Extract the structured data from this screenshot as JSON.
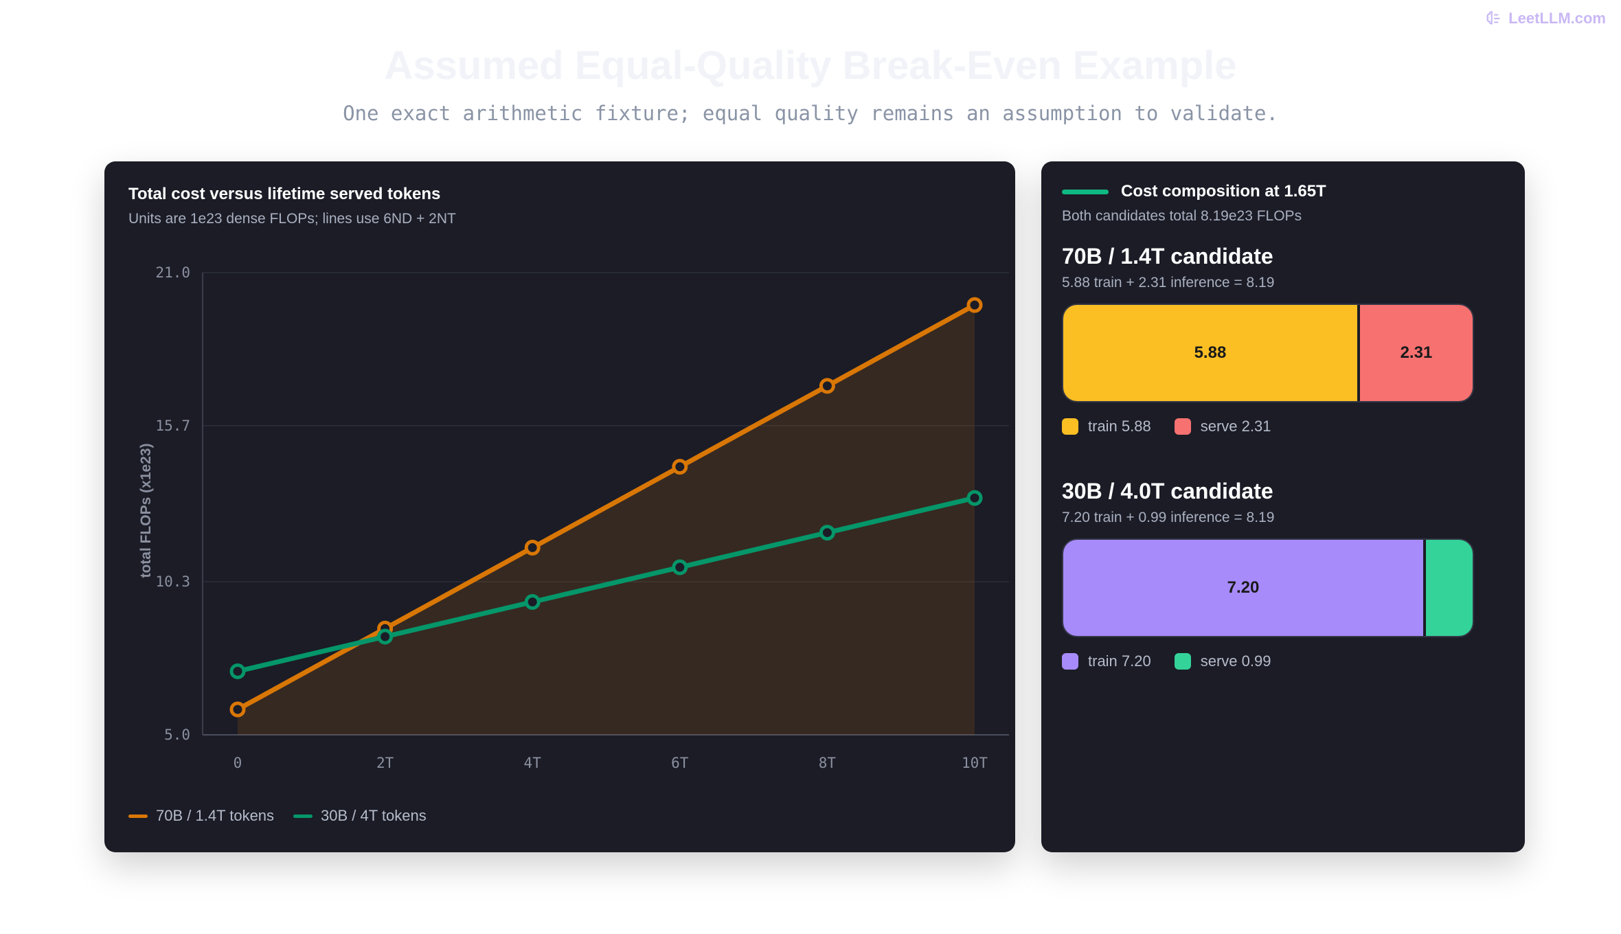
{
  "brand": {
    "name": "LeetLLM.com",
    "icon": "brain-icon"
  },
  "page": {
    "title": "Assumed Equal-Quality Break-Even Example",
    "subtitle": "One exact arithmetic fixture; equal quality remains an assumption to validate."
  },
  "left_panel": {
    "title": "Total cost versus lifetime served tokens",
    "subtitle": "Units are 1e23 dense FLOPs; lines use 6ND + 2NT"
  },
  "chart_data": {
    "type": "line",
    "title": "Total cost versus lifetime served tokens",
    "ylabel": "total FLOPs (x1e23)",
    "xlabel": "",
    "x": [
      0,
      2,
      4,
      6,
      8,
      10
    ],
    "x_tick_labels": [
      "0",
      "2T",
      "4T",
      "6T",
      "8T",
      "10T"
    ],
    "xlim": [
      0,
      10
    ],
    "ylim": [
      5.0,
      21.0
    ],
    "y_ticks": [
      5.0,
      10.3,
      15.7,
      21.0
    ],
    "y_tick_labels": [
      "5.0",
      "10.3",
      "15.7",
      "21.0"
    ],
    "grid": true,
    "series": [
      {
        "name": "70B / 1.4T tokens",
        "color": "#d97706",
        "fill_area": true,
        "values": [
          5.88,
          8.68,
          11.48,
          14.28,
          17.08,
          19.88
        ]
      },
      {
        "name": "30B / 4T tokens",
        "color": "#059669",
        "fill_area": false,
        "values": [
          7.2,
          8.4,
          9.6,
          10.8,
          12.0,
          13.2
        ]
      }
    ]
  },
  "right_panel": {
    "title": "Cost composition at 1.65T",
    "subtitle": "Both candidates total 8.19e23 FLOPs",
    "candidates": [
      {
        "title": "70B / 1.4T candidate",
        "equation": "5.88 train + 2.31 inference = 8.19",
        "segments": [
          {
            "label": "5.88",
            "value": 5.88,
            "color": "#fbbf24"
          },
          {
            "label": "2.31",
            "value": 2.31,
            "color": "#f87171"
          }
        ],
        "legend": [
          {
            "label": "train 5.88",
            "color": "#fbbf24"
          },
          {
            "label": "serve 2.31",
            "color": "#f87171"
          }
        ]
      },
      {
        "title": "30B / 4.0T candidate",
        "equation": "7.20 train + 0.99 inference = 8.19",
        "segments": [
          {
            "label": "7.20",
            "value": 7.2,
            "color": "#a78bfa"
          },
          {
            "label": "",
            "value": 0.99,
            "color": "#34d399"
          }
        ],
        "legend": [
          {
            "label": "train 7.20",
            "color": "#a78bfa"
          },
          {
            "label": "serve 0.99",
            "color": "#34d399"
          }
        ]
      }
    ]
  }
}
